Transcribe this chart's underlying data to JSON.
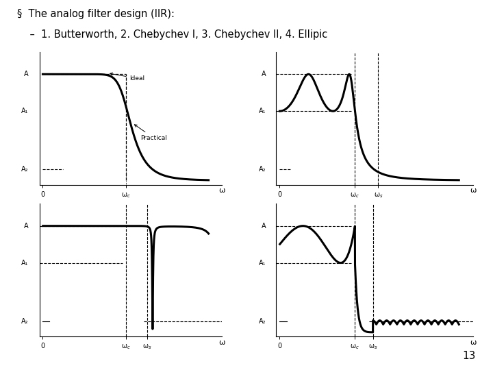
{
  "title_line1": "§  The analog filter design (IIR):",
  "title_line2": "    –  1. Butterworth, 2. Chebychev I, 3. Chebychev II, 4. Ellipic",
  "background_color": "#ffffff",
  "text_color": "#000000",
  "page_number": "13",
  "A_level": 0.95,
  "A1_level": 0.62,
  "A2_level": 0.1,
  "wc1": 0.5,
  "wc2": 0.42,
  "ws2": 0.55,
  "wc3": 0.5,
  "ws3": 0.63,
  "wc4": 0.42,
  "ws4": 0.52
}
